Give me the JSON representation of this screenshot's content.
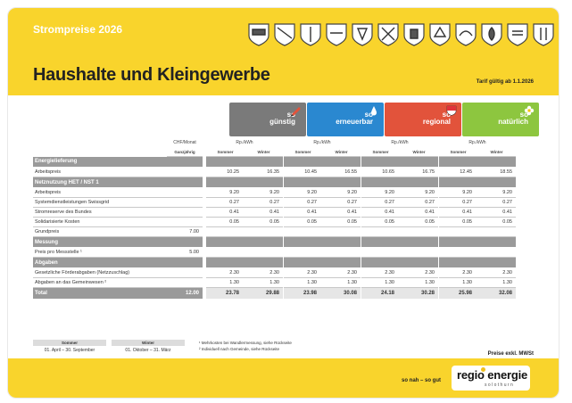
{
  "header": {
    "kicker": "Strompreise 2026",
    "title": "Haushalte und Kleingewerbe",
    "tarif": "Tarif gültig ab 1.1.2026",
    "crests": [
      "crest-1",
      "crest-2",
      "crest-3",
      "crest-4",
      "crest-5",
      "crest-6",
      "crest-7",
      "crest-8",
      "crest-9",
      "crest-10",
      "crest-11",
      "crest-12"
    ]
  },
  "products": [
    {
      "so": "so",
      "name": "günstig",
      "color": "#7a7a7a",
      "badge": "pencil-icon"
    },
    {
      "so": "so",
      "name": "erneuerbar",
      "color": "#2a88d0",
      "badge": "water-drop-icon"
    },
    {
      "so": "so",
      "name": "regional",
      "color": "#e2533b",
      "badge": "solothurn-crest-icon"
    },
    {
      "so": "so",
      "name": "natürlich",
      "color": "#8dc63f",
      "badge": "flower-icon"
    }
  ],
  "units": {
    "chf_monat": "CHF/Monat",
    "ganzjaehrig": "Ganzjährig",
    "rp_kwh": "Rp./kWh",
    "sommer": "Sommer",
    "winter": "Winter"
  },
  "sections": {
    "energie": "Energielieferung",
    "netz": "Netznutzung HET / NST 1",
    "messung": "Messung",
    "abgaben": "Abgaben",
    "total": "Total"
  },
  "rows": {
    "arbeitspreis_energie": {
      "label": "Arbeitspreis",
      "vals": [
        "10.25",
        "16.35",
        "10.45",
        "16.55",
        "10.65",
        "16.75",
        "12.45",
        "18.55"
      ]
    },
    "arbeitspreis_netz": {
      "label": "Arbeitspreis",
      "vals": [
        "9.20",
        "9.20",
        "9.20",
        "9.20",
        "9.20",
        "9.20",
        "9.20",
        "9.20"
      ]
    },
    "swissgrid": {
      "label": "Systemdienstleistungen Swissgrid",
      "vals": [
        "0.27",
        "0.27",
        "0.27",
        "0.27",
        "0.27",
        "0.27",
        "0.27",
        "0.27"
      ]
    },
    "stromreserve": {
      "label": "Stromreserve des Bundes",
      "vals": [
        "0.41",
        "0.41",
        "0.41",
        "0.41",
        "0.41",
        "0.41",
        "0.41",
        "0.41"
      ]
    },
    "solidarisiert": {
      "label": "Solidarisierte Kosten",
      "vals": [
        "0.05",
        "0.05",
        "0.05",
        "0.05",
        "0.05",
        "0.05",
        "0.05",
        "0.05"
      ]
    },
    "grundpreis": {
      "label": "Grundpreis",
      "chf": "7.00"
    },
    "messstelle": {
      "label": "Preis pro Messstelle ¹",
      "chf": "5.00"
    },
    "foerderabgaben": {
      "label": "Gesetzliche Förderabgaben (Netzzuschlag)",
      "vals": [
        "2.30",
        "2.30",
        "2.30",
        "2.30",
        "2.30",
        "2.30",
        "2.30",
        "2.30"
      ]
    },
    "gemeinwesen": {
      "label": "Abgaben an das Gemeinwesen ²",
      "vals": [
        "1.30",
        "1.30",
        "1.30",
        "1.30",
        "1.30",
        "1.30",
        "1.30",
        "1.30"
      ]
    },
    "total": {
      "chf": "12.00",
      "vals": [
        "23.78",
        "29.88",
        "23.98",
        "30.08",
        "24.18",
        "30.28",
        "25.98",
        "32.08"
      ]
    }
  },
  "seasons": [
    {
      "name": "Sommer",
      "range": "01. April – 30. September"
    },
    {
      "name": "Winter",
      "range": "01. Oktober – 31. März"
    }
  ],
  "footnotes": [
    "¹ Mehrkosten bei Wandlermessung, siehe Rückseite",
    "² Individuell nach Gemeinde, siehe Rückseite"
  ],
  "exkl": "Preise exkl. MWSt",
  "footer": {
    "slogan": "so nah – so gut",
    "logo_main": "regio energie",
    "logo_sub": "solothurn"
  }
}
